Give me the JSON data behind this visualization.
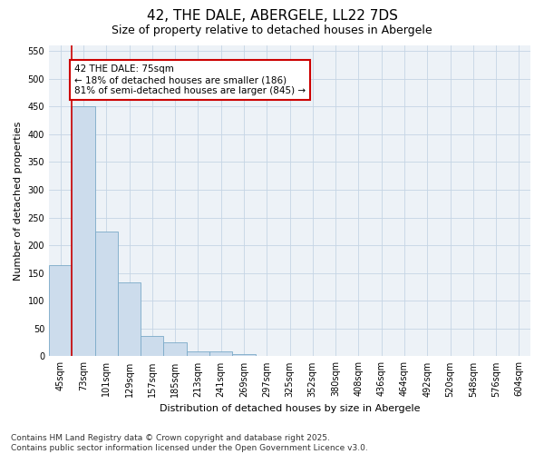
{
  "title": "42, THE DALE, ABERGELE, LL22 7DS",
  "subtitle": "Size of property relative to detached houses in Abergele",
  "xlabel": "Distribution of detached houses by size in Abergele",
  "ylabel": "Number of detached properties",
  "categories": [
    "45sqm",
    "73sqm",
    "101sqm",
    "129sqm",
    "157sqm",
    "185sqm",
    "213sqm",
    "241sqm",
    "269sqm",
    "297sqm",
    "325sqm",
    "352sqm",
    "380sqm",
    "408sqm",
    "436sqm",
    "464sqm",
    "492sqm",
    "520sqm",
    "548sqm",
    "576sqm",
    "604sqm"
  ],
  "values": [
    165,
    450,
    225,
    133,
    37,
    26,
    9,
    9,
    4,
    1,
    0,
    0,
    1,
    0,
    0,
    0,
    0,
    0,
    0,
    0,
    1
  ],
  "bar_color": "#ccdcec",
  "bar_edge_color": "#7aaac8",
  "red_line_index": 1,
  "annotation_text": "42 THE DALE: 75sqm\n← 18% of detached houses are smaller (186)\n81% of semi-detached houses are larger (845) →",
  "annotation_box_color": "#ffffff",
  "annotation_box_edge": "#cc0000",
  "ylim": [
    0,
    560
  ],
  "yticks": [
    0,
    50,
    100,
    150,
    200,
    250,
    300,
    350,
    400,
    450,
    500,
    550
  ],
  "background_color": "#edf2f7",
  "footer": "Contains HM Land Registry data © Crown copyright and database right 2025.\nContains public sector information licensed under the Open Government Licence v3.0.",
  "title_fontsize": 11,
  "subtitle_fontsize": 9,
  "axis_label_fontsize": 8,
  "tick_fontsize": 7,
  "footer_fontsize": 6.5,
  "annotation_fontsize": 7.5,
  "red_line_color": "#cc0000",
  "grid_color": "#c5d5e5"
}
